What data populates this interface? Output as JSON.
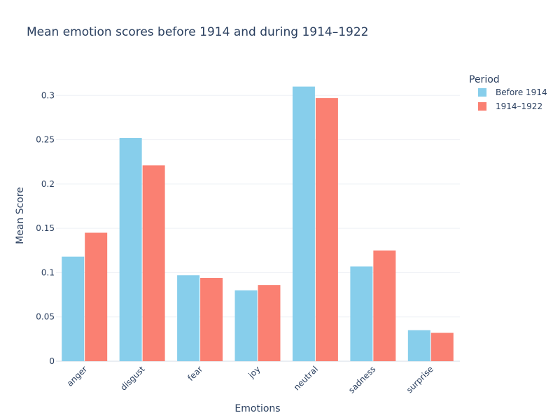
{
  "chart_data": {
    "type": "bar",
    "title": "Mean emotion scores before 1914 and during 1914–1922",
    "xlabel": "Emotions",
    "ylabel": "Mean Score",
    "categories": [
      "anger",
      "disgust",
      "fear",
      "joy",
      "neutral",
      "sadness",
      "surprise"
    ],
    "series": [
      {
        "name": "Before 1914",
        "color": "#87ceeb",
        "values": [
          0.118,
          0.252,
          0.097,
          0.08,
          0.31,
          0.107,
          0.035
        ]
      },
      {
        "name": "1914–1922",
        "color": "#fa8072",
        "values": [
          0.145,
          0.221,
          0.094,
          0.086,
          0.297,
          0.125,
          0.032
        ]
      }
    ],
    "ylim": [
      0,
      0.335
    ],
    "yticks": [
      0,
      0.05,
      0.1,
      0.15,
      0.2,
      0.25,
      0.3
    ],
    "ytick_labels": [
      "0",
      "0.05",
      "0.1",
      "0.15",
      "0.2",
      "0.25",
      "0.3"
    ],
    "grid": true,
    "legend": {
      "title": "Period",
      "placement": "top-right"
    }
  }
}
